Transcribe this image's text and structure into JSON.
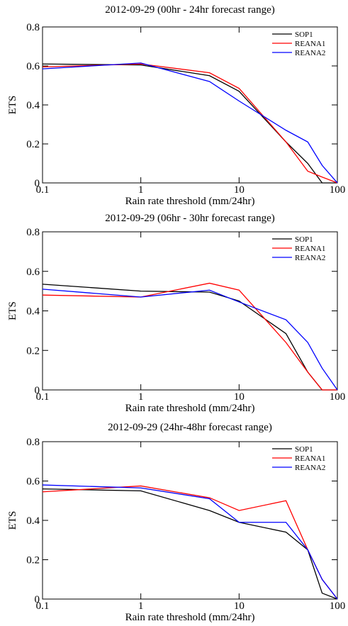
{
  "chart_data": [
    {
      "type": "line",
      "title": "2012-09-29 (00hr - 24hr forecast range)",
      "xlabel": "Rain rate threshold (mm/24hr)",
      "ylabel": "ETS",
      "xscale": "log",
      "xlim": [
        0.1,
        100
      ],
      "xticks": [
        0.1,
        1,
        10,
        100
      ],
      "ylim": [
        0,
        0.8
      ],
      "yticks": [
        0,
        0.2,
        0.4,
        0.6,
        0.8
      ],
      "legend": "upper right",
      "x": [
        0.1,
        1,
        5,
        10,
        30,
        50,
        70,
        100
      ],
      "series": [
        {
          "name": "SOP1",
          "color": "#000000",
          "values": [
            0.61,
            0.605,
            0.55,
            0.47,
            0.21,
            0.1,
            0,
            0
          ]
        },
        {
          "name": "REANA1",
          "color": "#ff0000",
          "values": [
            0.595,
            0.61,
            0.565,
            0.485,
            0.21,
            0.06,
            0.03,
            0
          ]
        },
        {
          "name": "REANA2",
          "color": "#0000ff",
          "values": [
            0.585,
            0.615,
            0.52,
            0.42,
            0.27,
            0.21,
            0.09,
            0
          ]
        }
      ]
    },
    {
      "type": "line",
      "title": "2012-09-29 (06hr - 30hr forecast range)",
      "xlabel": "Rain rate threshold (mm/24hr)",
      "ylabel": "ETS",
      "xscale": "log",
      "xlim": [
        0.1,
        100
      ],
      "xticks": [
        0.1,
        1,
        10,
        100
      ],
      "ylim": [
        0,
        0.8
      ],
      "yticks": [
        0,
        0.2,
        0.4,
        0.6,
        0.8
      ],
      "legend": "upper right",
      "x": [
        0.1,
        1,
        5,
        10,
        30,
        50,
        70,
        100
      ],
      "series": [
        {
          "name": "SOP1",
          "color": "#000000",
          "values": [
            0.535,
            0.5,
            0.495,
            0.45,
            0.285,
            0.09,
            0,
            0
          ]
        },
        {
          "name": "REANA1",
          "color": "#ff0000",
          "values": [
            0.48,
            0.47,
            0.54,
            0.505,
            0.24,
            0.09,
            0,
            0
          ]
        },
        {
          "name": "REANA2",
          "color": "#0000ff",
          "values": [
            0.51,
            0.47,
            0.505,
            0.445,
            0.355,
            0.24,
            0.11,
            0
          ]
        }
      ]
    },
    {
      "type": "line",
      "title": "2012-09-29 (24hr-48hr forecast range)",
      "xlabel": "Rain rate threshold (mm/24hr)",
      "ylabel": "ETS",
      "xscale": "log",
      "xlim": [
        0.1,
        100
      ],
      "xticks": [
        0.1,
        1,
        10,
        100
      ],
      "ylim": [
        0,
        0.8
      ],
      "yticks": [
        0,
        0.2,
        0.4,
        0.6,
        0.8
      ],
      "legend": "upper right",
      "x": [
        0.1,
        1,
        5,
        10,
        30,
        50,
        70,
        100
      ],
      "series": [
        {
          "name": "SOP1",
          "color": "#000000",
          "values": [
            0.56,
            0.55,
            0.45,
            0.39,
            0.34,
            0.25,
            0.03,
            0
          ]
        },
        {
          "name": "REANA1",
          "color": "#ff0000",
          "values": [
            0.545,
            0.575,
            0.515,
            0.45,
            0.5,
            0.25,
            0.1,
            0
          ]
        },
        {
          "name": "REANA2",
          "color": "#0000ff",
          "values": [
            0.58,
            0.565,
            0.51,
            0.39,
            0.39,
            0.25,
            0.1,
            0
          ]
        }
      ]
    }
  ]
}
